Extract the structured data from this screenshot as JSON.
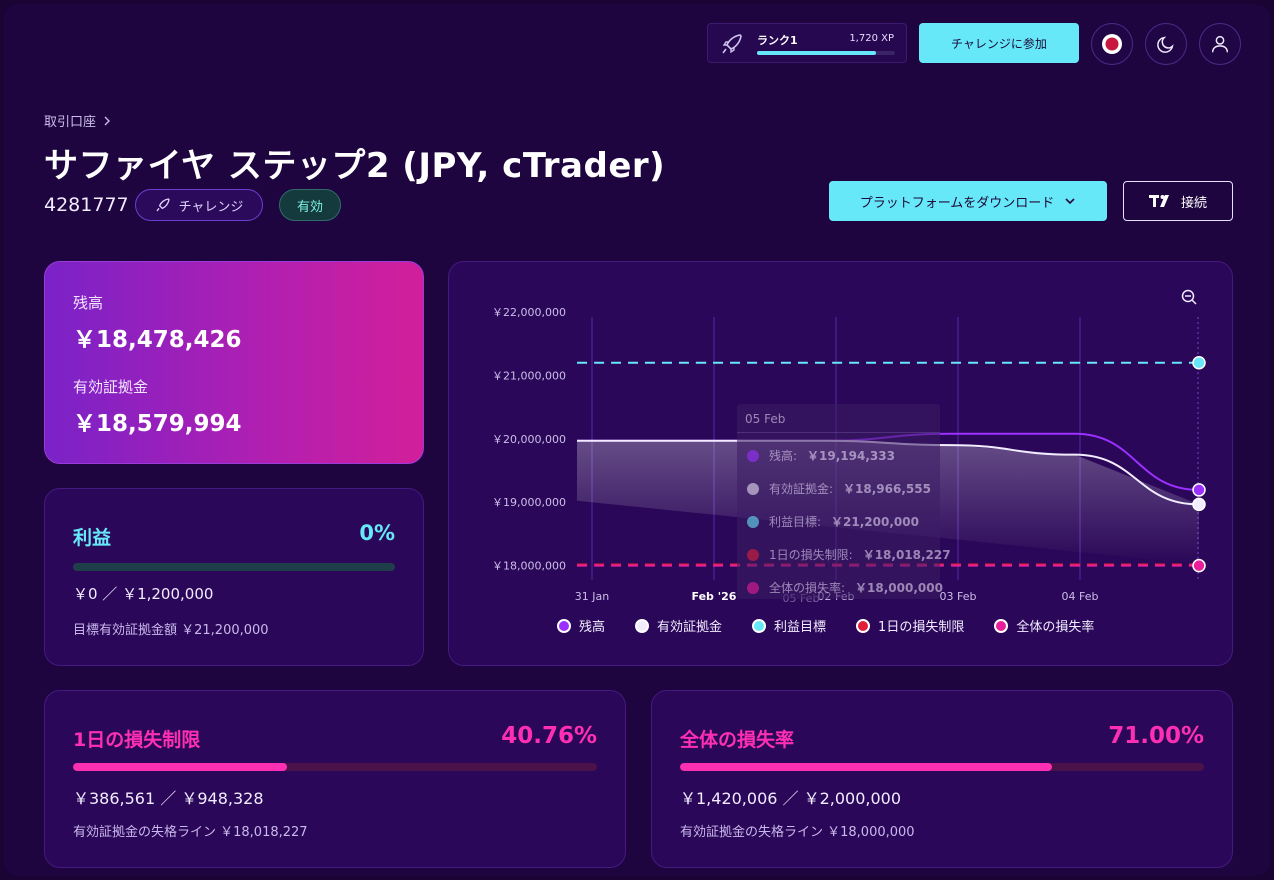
{
  "topbar": {
    "rank_label": "ランク1",
    "rank_xp": "1,720 XP",
    "rank_progress": 0.86,
    "join_button": "チャレンジに参加"
  },
  "header": {
    "breadcrumb": "取引口座",
    "title": "サファイヤ ステップ2 (JPY, cTrader)",
    "account_number": "4281777",
    "tag_challenge": "チャレンジ",
    "tag_status": "有効",
    "download_button": "プラットフォームをダウンロード",
    "connect_button": "接続"
  },
  "balance_card": {
    "balance_label": "残高",
    "balance_value": "￥18,478,426",
    "equity_label": "有効証拠金",
    "equity_value": "￥18,579,994"
  },
  "profit_card": {
    "title": "利益",
    "percent": "0%",
    "progress": 0,
    "amount": "￥0 ／ ￥1,200,000",
    "note": "目標有効証拠金額 ￥21,200,000"
  },
  "daily_loss_card": {
    "title": "1日の損失制限",
    "percent": "40.76%",
    "progress": 0.4076,
    "amount": "￥386,561 ／ ￥948,328",
    "note": "有効証拠金の失格ライン ￥18,018,227"
  },
  "total_loss_card": {
    "title": "全体の損失率",
    "percent": "71.00%",
    "progress": 0.71,
    "amount": "￥1,420,006 ／ ￥2,000,000",
    "note": "有効証拠金の失格ライン ￥18,000,000"
  },
  "tooltip": {
    "date": "05 Feb",
    "rows": [
      {
        "label": "残高:",
        "value": "￥19,194,333",
        "color": "#9b30ff"
      },
      {
        "label": "有効証拠金:",
        "value": "￥18,966,555",
        "color": "#e8e0f0"
      },
      {
        "label": "利益目標:",
        "value": "￥21,200,000",
        "color": "#67e8f9"
      },
      {
        "label": "1日の損失制限:",
        "value": "￥18,018,227",
        "color": "#e0203a"
      },
      {
        "label": "全体の損失率:",
        "value": "￥18,000,000",
        "color": "#e91e9a"
      }
    ]
  },
  "chart_data": {
    "type": "line",
    "x_ticks": [
      "31 Jan",
      "Feb '26",
      "02 Feb",
      "03 Feb",
      "04 Feb"
    ],
    "x_hover_label": "05 Feb",
    "y_ticks": [
      "￥22,000,000",
      "￥21,000,000",
      "￥20,000,000",
      "￥19,000,000",
      "￥18,000,000"
    ],
    "ylim": [
      17900000,
      22000000
    ],
    "x_positions": [
      0,
      1,
      2,
      3,
      4,
      5
    ],
    "series": [
      {
        "name": "残高",
        "color": "#9b30ff",
        "values": [
          19970000,
          19970000,
          19970000,
          20080000,
          20080000,
          19194333
        ]
      },
      {
        "name": "有効証拠金",
        "color": "#f2ecff",
        "values": [
          19970000,
          19970000,
          19970000,
          19900000,
          19750000,
          18966555
        ]
      },
      {
        "name": "利益目標",
        "color": "#67e8f9",
        "values": [
          21200000,
          21200000,
          21200000,
          21200000,
          21200000,
          21200000
        ],
        "dashed": true
      },
      {
        "name": "1日の損失制限",
        "color": "#e0203a",
        "values": [
          18018227,
          18018227,
          18018227,
          18018227,
          18018227,
          18018227
        ],
        "dashed": true
      },
      {
        "name": "全体の損失率",
        "color": "#e91e9a",
        "values": [
          18000000,
          18000000,
          18000000,
          18000000,
          18000000,
          18000000
        ],
        "dashed": true
      }
    ],
    "legend_placement": "bottom"
  }
}
